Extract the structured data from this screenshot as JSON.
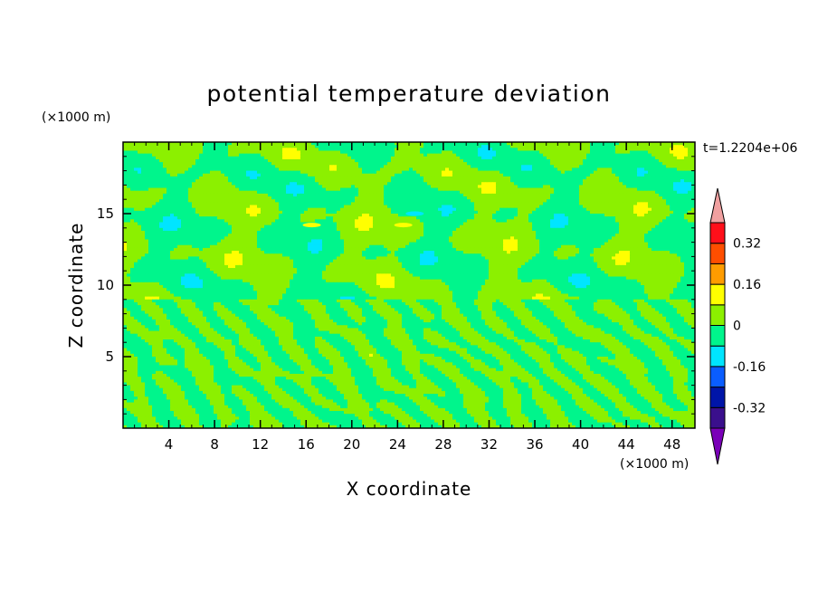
{
  "chart_data": {
    "type": "heatmap",
    "title": "potential temperature deviation",
    "xlabel": "X coordinate",
    "ylabel": "Z coordinate",
    "x_unit": "(×1000 m)",
    "y_unit": "(×1000 m)",
    "time_label": "t=1.2204e+06",
    "xlim": [
      0,
      50
    ],
    "ylim": [
      0,
      20
    ],
    "x_ticks": [
      4,
      8,
      12,
      16,
      20,
      24,
      28,
      32,
      36,
      40,
      44,
      48
    ],
    "y_ticks": [
      5,
      10,
      15
    ],
    "colorbar": {
      "levels": [
        -0.4,
        -0.32,
        -0.24,
        -0.16,
        -0.08,
        0,
        0.08,
        0.16,
        0.24,
        0.32,
        0.4
      ],
      "labels": [
        "0.32",
        "0.16",
        "0",
        "-0.16",
        "-0.32"
      ],
      "label_values": [
        0.32,
        0.16,
        0,
        -0.16,
        -0.32
      ],
      "colors": [
        "#3a0f8c",
        "#0015a8",
        "#0a5dff",
        "#00e5ff",
        "#00f58c",
        "#8cf000",
        "#ffff00",
        "#ff9c00",
        "#ff4e00",
        "#ff0f1a"
      ],
      "under_color": "#7a00b8",
      "over_color": "#f0a0a0"
    },
    "dominant_ranges": [
      "-0.08 to 0",
      "0 to 0.08"
    ],
    "features": [
      {
        "label": "local maxima in 0.08 to 0.16 band",
        "x": [
          16.5,
          24.5
        ],
        "z": [
          14.2,
          14.2
        ]
      },
      {
        "label": "local minimum in -0.16 to -0.08 band",
        "x": [
          25.5
        ],
        "z": [
          15.0
        ]
      }
    ]
  }
}
